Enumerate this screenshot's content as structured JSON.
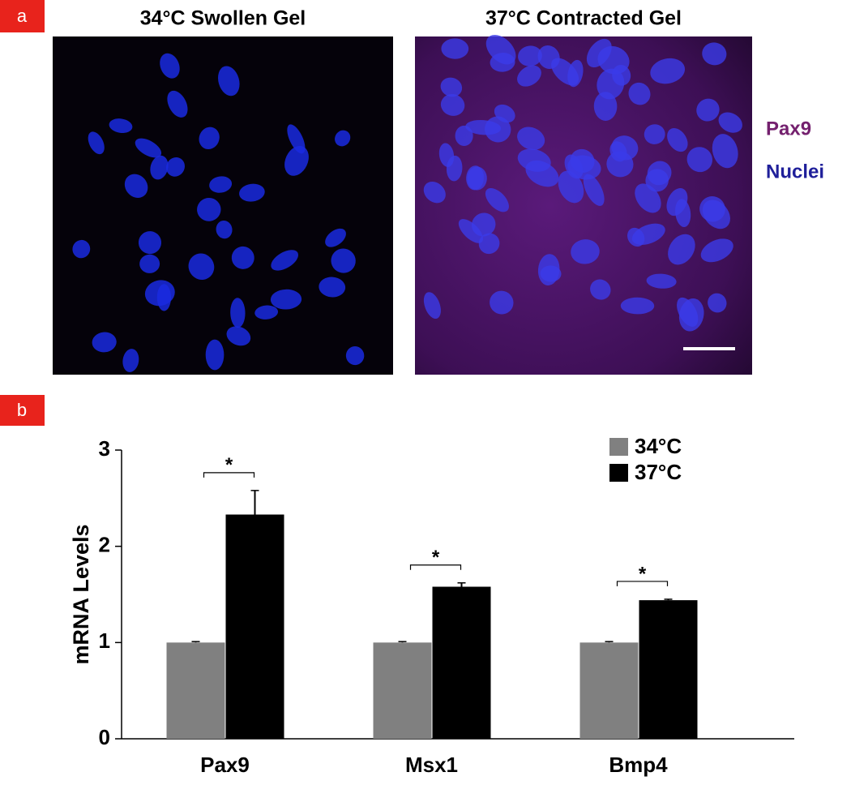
{
  "panel_labels": [
    "a",
    "b"
  ],
  "images": [
    {
      "title": "34°C Swollen Gel"
    },
    {
      "title": "37°C Contracted Gel"
    }
  ],
  "stain_legend": [
    "Pax9",
    "Nuclei"
  ],
  "chart_data": {
    "type": "bar",
    "ylabel": "mRNA Levels",
    "categories": [
      "Pax9",
      "Msx1",
      "Bmp4"
    ],
    "series": [
      {
        "name": "34°C",
        "color": "#808080",
        "values": [
          1,
          1,
          1
        ],
        "errors": [
          0.01,
          0.01,
          0.01
        ]
      },
      {
        "name": "37°C",
        "color": "#000000",
        "values": [
          2.33,
          1.58,
          1.44
        ],
        "errors": [
          0.25,
          0.04,
          0.01
        ]
      }
    ],
    "annotations": [
      "*",
      "*",
      "*"
    ],
    "ylim": [
      0,
      3
    ],
    "yticks": [
      0,
      1,
      2,
      3
    ]
  }
}
